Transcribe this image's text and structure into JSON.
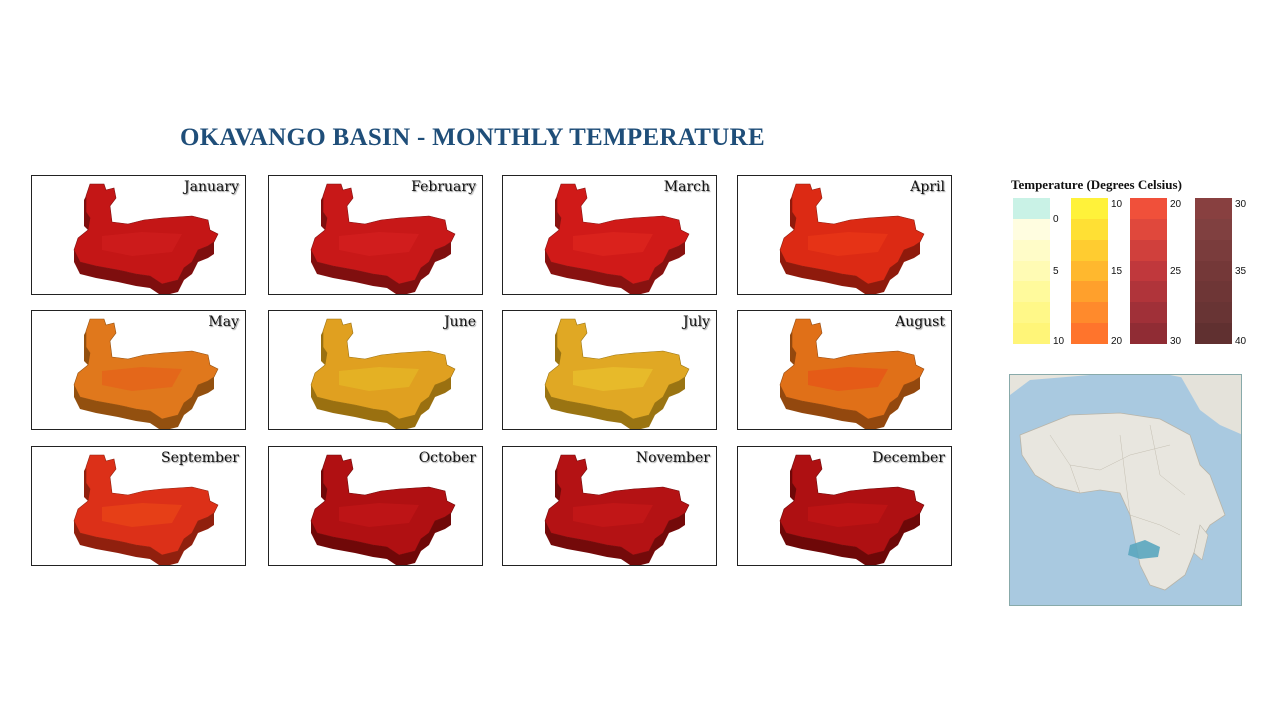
{
  "title": "OKAVANGO BASIN - MONTHLY TEMPERATURE",
  "months": [
    {
      "label": "January",
      "fill": "#c41616",
      "dark": "#7e0e0e",
      "light": "#d42020"
    },
    {
      "label": "February",
      "fill": "#c81818",
      "dark": "#800f0f",
      "light": "#d82222"
    },
    {
      "label": "March",
      "fill": "#d01a18",
      "dark": "#881210",
      "light": "#e22a20"
    },
    {
      "label": "April",
      "fill": "#dc2a14",
      "dark": "#8f1a0c",
      "light": "#ee3a18"
    },
    {
      "label": "May",
      "fill": "#e0781c",
      "dark": "#93500f",
      "light": "#e85a1a"
    },
    {
      "label": "June",
      "fill": "#e0a020",
      "dark": "#9a7010",
      "light": "#e8c028"
    },
    {
      "label": "July",
      "fill": "#e0a824",
      "dark": "#9a7412",
      "light": "#ecc830"
    },
    {
      "label": "August",
      "fill": "#e07018",
      "dark": "#93480e",
      "light": "#ea4a18"
    },
    {
      "label": "September",
      "fill": "#dc3018",
      "dark": "#90200e",
      "light": "#ee4c18"
    },
    {
      "label": "October",
      "fill": "#b01012",
      "dark": "#700808",
      "light": "#c8181a"
    },
    {
      "label": "November",
      "fill": "#b41214",
      "dark": "#740a0a",
      "light": "#cc1a1a"
    },
    {
      "label": "December",
      "fill": "#ae1012",
      "dark": "#6e0808",
      "light": "#c81616"
    }
  ],
  "legend": {
    "title": "Temperature (Degrees Celsius)",
    "ramps": [
      {
        "colors": [
          "#c9f2e6",
          "#fffde0",
          "#fffcc8",
          "#fffbb4",
          "#fffa9c",
          "#fff888",
          "#fff578"
        ],
        "ticks": [
          "0",
          "5",
          "10"
        ]
      },
      {
        "colors": [
          "#fff23a",
          "#ffe034",
          "#ffcc30",
          "#ffb82e",
          "#ffa02c",
          "#ff8a2c",
          "#ff742c"
        ],
        "ticks": [
          "10",
          "15",
          "20"
        ]
      },
      {
        "colors": [
          "#f0503a",
          "#e0483c",
          "#d0403c",
          "#c0383c",
          "#b0343a",
          "#a03038",
          "#902c34"
        ],
        "ticks": [
          "20",
          "25",
          "30"
        ]
      },
      {
        "colors": [
          "#884040",
          "#804040",
          "#7a3c3c",
          "#743838",
          "#6e3636",
          "#683434",
          "#603030"
        ],
        "ticks": [
          "30",
          "35",
          "40"
        ]
      }
    ]
  }
}
